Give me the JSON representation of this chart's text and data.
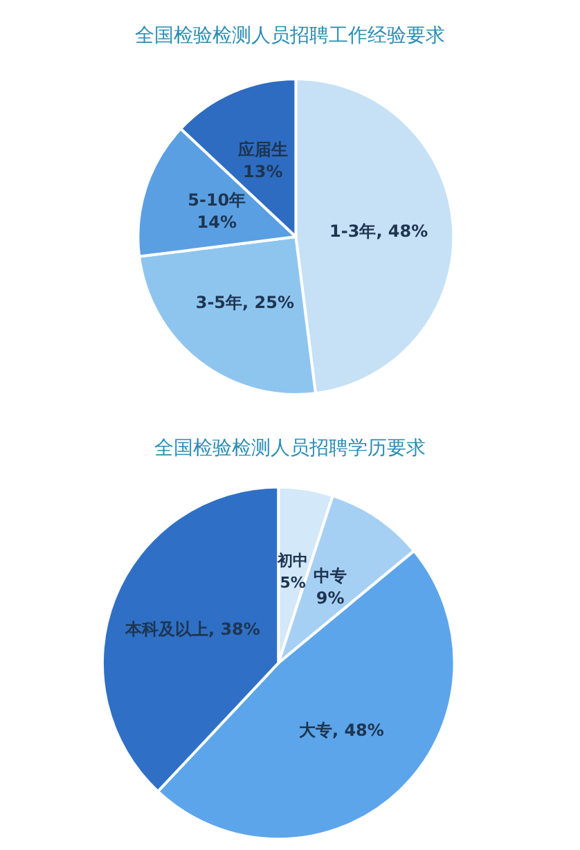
{
  "chart_data": [
    {
      "type": "pie",
      "title": "全国检验检测人员招聘工作经验要求",
      "categories": [
        "1-3年",
        "3-5年",
        "5-10年",
        "应届生"
      ],
      "values": [
        48,
        25,
        14,
        13
      ],
      "colors": [
        "#c6e1f6",
        "#8ec5ef",
        "#5b9fe3",
        "#2e6cc2"
      ],
      "value_labels": [
        "48%",
        "25%",
        "14%",
        "13%"
      ]
    },
    {
      "type": "pie",
      "title": "全国检验检测人员招聘学历要求",
      "categories": [
        "初中",
        "中专",
        "大专",
        "本科及以上"
      ],
      "values": [
        5,
        9,
        48,
        38
      ],
      "colors": [
        "#d3e8f8",
        "#a6d0f3",
        "#5da5ea",
        "#2f70c6"
      ],
      "value_labels": [
        "5%",
        "9%",
        "48%",
        "38%"
      ]
    }
  ]
}
